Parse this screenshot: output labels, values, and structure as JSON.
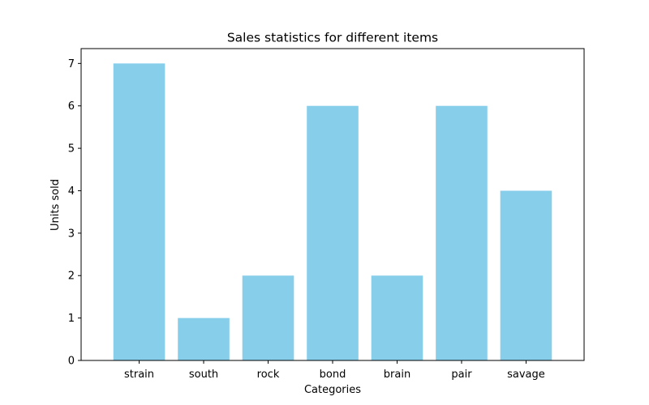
{
  "chart_data": {
    "type": "bar",
    "title": "Sales statistics for different items",
    "xlabel": "Categories",
    "ylabel": "Units sold",
    "categories": [
      "strain",
      "south",
      "rock",
      "bond",
      "brain",
      "pair",
      "savage"
    ],
    "values": [
      7,
      1,
      2,
      6,
      2,
      6,
      4
    ],
    "ylim": [
      0,
      7.35
    ],
    "yticks": [
      0,
      1,
      2,
      3,
      4,
      5,
      6,
      7
    ],
    "grid": false,
    "bar_color": "#87ceeb"
  }
}
